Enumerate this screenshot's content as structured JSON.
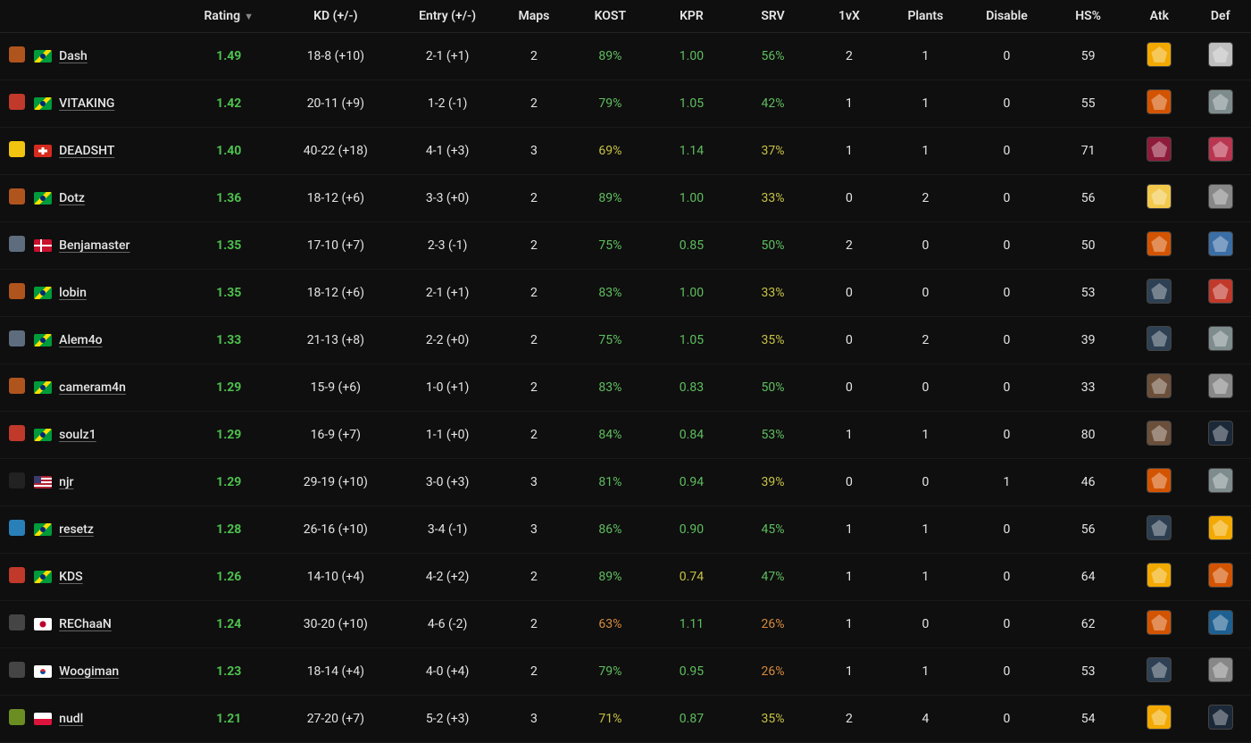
{
  "colors": {
    "background": "#0f0f0f",
    "text": "#e5e5e5",
    "row_border": "#1a1a1a",
    "rating_good": "#4ec04e",
    "stat_green": "#5fbf5f",
    "stat_yellow": "#c8c245",
    "stat_orange": "#d88b3f"
  },
  "headers": {
    "rating": "Rating",
    "kd": "KD (+/-)",
    "entry": "Entry (+/-)",
    "maps": "Maps",
    "kost": "KOST",
    "kpr": "KPR",
    "srv": "SRV",
    "onevx": "1vX",
    "plants": "Plants",
    "disable": "Disable",
    "hs": "HS%",
    "atk": "Atk",
    "def": "Def"
  },
  "thresholds": {
    "kost": {
      "green": 75,
      "yellow": 65
    },
    "kpr": {
      "green": 0.8,
      "yellow": 0.7
    },
    "srv": {
      "green": 40,
      "yellow": 30
    }
  },
  "rows": [
    {
      "team_color": "#b0541e",
      "flag": "br",
      "player": "Dash",
      "rating": "1.49",
      "kd": "18-8 (+10)",
      "entry": "2-1 (+1)",
      "maps": "2",
      "kost": "89%",
      "kost_v": 89,
      "kpr": "1.00",
      "kpr_v": 1.0,
      "srv": "56%",
      "srv_v": 56,
      "onevx": "2",
      "plants": "1",
      "disable": "0",
      "hs": "59",
      "atk_bg": "#f2a900",
      "def_bg": "#bfbfbf"
    },
    {
      "team_color": "#c0392b",
      "flag": "br",
      "player": "VITAKING",
      "rating": "1.42",
      "kd": "20-11 (+9)",
      "entry": "1-2 (-1)",
      "maps": "2",
      "kost": "79%",
      "kost_v": 79,
      "kpr": "1.05",
      "kpr_v": 1.05,
      "srv": "42%",
      "srv_v": 42,
      "onevx": "1",
      "plants": "1",
      "disable": "0",
      "hs": "55",
      "atk_bg": "#d35400",
      "def_bg": "#7f8c8d"
    },
    {
      "team_color": "#f1c40f",
      "flag": "ch",
      "player": "DEADSHT",
      "rating": "1.40",
      "kd": "40-22 (+18)",
      "entry": "4-1 (+3)",
      "maps": "3",
      "kost": "69%",
      "kost_v": 69,
      "kpr": "1.14",
      "kpr_v": 1.14,
      "srv": "37%",
      "srv_v": 37,
      "onevx": "1",
      "plants": "1",
      "disable": "0",
      "hs": "71",
      "atk_bg": "#8e1b3a",
      "def_bg": "#b93550"
    },
    {
      "team_color": "#b0541e",
      "flag": "br",
      "player": "Dotz",
      "rating": "1.36",
      "kd": "18-12 (+6)",
      "entry": "3-3 (+0)",
      "maps": "2",
      "kost": "89%",
      "kost_v": 89,
      "kpr": "1.00",
      "kpr_v": 1.0,
      "srv": "33%",
      "srv_v": 33,
      "onevx": "0",
      "plants": "2",
      "disable": "0",
      "hs": "56",
      "atk_bg": "#f2c94c",
      "def_bg": "#888888"
    },
    {
      "team_color": "#5d6d7e",
      "flag": "dk",
      "player": "Benjamaster",
      "rating": "1.35",
      "kd": "17-10 (+7)",
      "entry": "2-3 (-1)",
      "maps": "2",
      "kost": "75%",
      "kost_v": 75,
      "kpr": "0.85",
      "kpr_v": 0.85,
      "srv": "50%",
      "srv_v": 50,
      "onevx": "2",
      "plants": "0",
      "disable": "0",
      "hs": "50",
      "atk_bg": "#d35400",
      "def_bg": "#3b6ea5"
    },
    {
      "team_color": "#b0541e",
      "flag": "br",
      "player": "lobin",
      "rating": "1.35",
      "kd": "18-12 (+6)",
      "entry": "2-1 (+1)",
      "maps": "2",
      "kost": "83%",
      "kost_v": 83,
      "kpr": "1.00",
      "kpr_v": 1.0,
      "srv": "33%",
      "srv_v": 33,
      "onevx": "0",
      "plants": "0",
      "disable": "0",
      "hs": "53",
      "atk_bg": "#2e4053",
      "def_bg": "#c0392b"
    },
    {
      "team_color": "#5d6d7e",
      "flag": "br",
      "player": "Alem4o",
      "rating": "1.33",
      "kd": "21-13 (+8)",
      "entry": "2-2 (+0)",
      "maps": "2",
      "kost": "75%",
      "kost_v": 75,
      "kpr": "1.05",
      "kpr_v": 1.05,
      "srv": "35%",
      "srv_v": 35,
      "onevx": "0",
      "plants": "2",
      "disable": "0",
      "hs": "39",
      "atk_bg": "#2e4053",
      "def_bg": "#7f8c8d"
    },
    {
      "team_color": "#b0541e",
      "flag": "br",
      "player": "cameram4n",
      "rating": "1.29",
      "kd": "15-9 (+6)",
      "entry": "1-0 (+1)",
      "maps": "2",
      "kost": "83%",
      "kost_v": 83,
      "kpr": "0.83",
      "kpr_v": 0.83,
      "srv": "50%",
      "srv_v": 50,
      "onevx": "0",
      "plants": "0",
      "disable": "0",
      "hs": "33",
      "atk_bg": "#6b4f3a",
      "def_bg": "#888888"
    },
    {
      "team_color": "#c0392b",
      "flag": "br",
      "player": "soulz1",
      "rating": "1.29",
      "kd": "16-9 (+7)",
      "entry": "1-1 (+0)",
      "maps": "2",
      "kost": "84%",
      "kost_v": 84,
      "kpr": "0.84",
      "kpr_v": 0.84,
      "srv": "53%",
      "srv_v": 53,
      "onevx": "1",
      "plants": "1",
      "disable": "0",
      "hs": "80",
      "atk_bg": "#6b4f3a",
      "def_bg": "#1b2838"
    },
    {
      "team_color": "#222222",
      "flag": "us",
      "player": "njr",
      "rating": "1.29",
      "kd": "29-19 (+10)",
      "entry": "3-0 (+3)",
      "maps": "3",
      "kost": "81%",
      "kost_v": 81,
      "kpr": "0.94",
      "kpr_v": 0.94,
      "srv": "39%",
      "srv_v": 39,
      "onevx": "0",
      "plants": "0",
      "disable": "1",
      "hs": "46",
      "atk_bg": "#d35400",
      "def_bg": "#7f8c8d"
    },
    {
      "team_color": "#2980b9",
      "flag": "br",
      "player": "resetz",
      "rating": "1.28",
      "kd": "26-16 (+10)",
      "entry": "3-4 (-1)",
      "maps": "3",
      "kost": "86%",
      "kost_v": 86,
      "kpr": "0.90",
      "kpr_v": 0.9,
      "srv": "45%",
      "srv_v": 45,
      "onevx": "1",
      "plants": "1",
      "disable": "0",
      "hs": "56",
      "atk_bg": "#2c3e50",
      "def_bg": "#f2a900"
    },
    {
      "team_color": "#c0392b",
      "flag": "br",
      "player": "KDS",
      "rating": "1.26",
      "kd": "14-10 (+4)",
      "entry": "4-2 (+2)",
      "maps": "2",
      "kost": "89%",
      "kost_v": 89,
      "kpr": "0.74",
      "kpr_v": 0.74,
      "srv": "47%",
      "srv_v": 47,
      "onevx": "1",
      "plants": "1",
      "disable": "0",
      "hs": "64",
      "atk_bg": "#f2a900",
      "def_bg": "#d35400"
    },
    {
      "team_color": "#454545",
      "flag": "jp",
      "player": "REChaaN",
      "rating": "1.24",
      "kd": "30-20 (+10)",
      "entry": "4-6 (-2)",
      "maps": "2",
      "kost": "63%",
      "kost_v": 63,
      "kpr": "1.11",
      "kpr_v": 1.11,
      "srv": "26%",
      "srv_v": 26,
      "onevx": "1",
      "plants": "0",
      "disable": "0",
      "hs": "62",
      "atk_bg": "#d35400",
      "def_bg": "#1e6091"
    },
    {
      "team_color": "#454545",
      "flag": "kr",
      "player": "Woogiman",
      "rating": "1.23",
      "kd": "18-14 (+4)",
      "entry": "4-0 (+4)",
      "maps": "2",
      "kost": "79%",
      "kost_v": 79,
      "kpr": "0.95",
      "kpr_v": 0.95,
      "srv": "26%",
      "srv_v": 26,
      "onevx": "1",
      "plants": "1",
      "disable": "0",
      "hs": "53",
      "atk_bg": "#2e4053",
      "def_bg": "#888888"
    },
    {
      "team_color": "#6b8e23",
      "flag": "pl",
      "player": "nudl",
      "rating": "1.21",
      "kd": "27-20 (+7)",
      "entry": "5-2 (+3)",
      "maps": "3",
      "kost": "71%",
      "kost_v": 71,
      "kpr": "0.87",
      "kpr_v": 0.87,
      "srv": "35%",
      "srv_v": 35,
      "onevx": "2",
      "plants": "4",
      "disable": "0",
      "hs": "54",
      "atk_bg": "#f2a900",
      "def_bg": "#1b2838"
    }
  ]
}
